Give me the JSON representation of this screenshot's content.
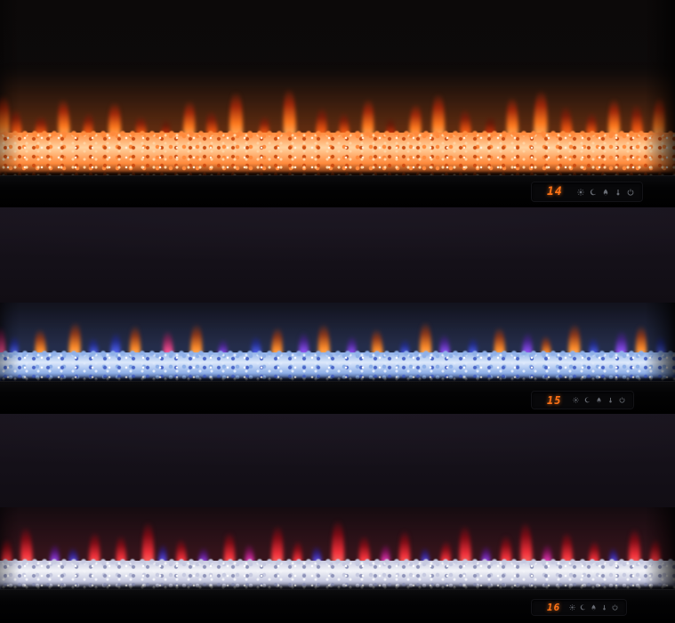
{
  "image": {
    "type": "product-photo",
    "subject": "Three wall-recessed linear electric fireplaces stacked vertically, each showing a different flame and crystal ember color theme",
    "background_color": "#0b0809"
  },
  "colors": {
    "digit_orange": "#ff7316",
    "icon_gray": "#81868f",
    "bezel_black": "#030304",
    "wall_dark": "#171219"
  },
  "panels": [
    {
      "id": "top",
      "flame_theme": "orange flames",
      "crystal_theme": "amber glowing crystals",
      "display": {
        "temperature": "14",
        "icons": [
          {
            "name": "sun-icon",
            "meaning": "flame brightness"
          },
          {
            "name": "moon-icon",
            "meaning": "sleep / night mode"
          },
          {
            "name": "flame-icon",
            "meaning": "flame effect"
          },
          {
            "name": "thermometer-icon",
            "meaning": "heat setting"
          },
          {
            "name": "power-icon",
            "meaning": "power"
          }
        ]
      },
      "bed": {
        "hi": "#ffd2a0",
        "mid": "#ff8a3c",
        "deep": "#cc4d12",
        "shadow": "#521d06",
        "spark": "#fff1dc"
      },
      "glow": "rgba(255,110,30,0.40)",
      "palette": {
        "a": [
          "#ffc97e",
          "#ff7a1e",
          "rgba(186,40,8,0.75)"
        ],
        "b": [
          "#ff9a4a",
          "#e8530f",
          "rgba(140,24,6,0.70)"
        ],
        "c": [
          "#ff6a30",
          "#c03008",
          "rgba(100,16,4,0.65)"
        ]
      },
      "flames": [
        [
          0.5,
          54,
          15,
          "a",
          0
        ],
        [
          2.5,
          38,
          12,
          "b",
          -3
        ],
        [
          6,
          30,
          13,
          "b",
          2
        ],
        [
          9.5,
          50,
          13,
          "a",
          -2
        ],
        [
          13,
          34,
          11,
          "b",
          3
        ],
        [
          17,
          46,
          14,
          "a",
          0
        ],
        [
          21,
          30,
          12,
          "b",
          -2
        ],
        [
          24.5,
          26,
          10,
          "c",
          2
        ],
        [
          28,
          48,
          13,
          "a",
          1
        ],
        [
          31.5,
          36,
          12,
          "b",
          -3
        ],
        [
          35,
          58,
          15,
          "a",
          0
        ],
        [
          39,
          30,
          11,
          "b",
          3
        ],
        [
          43,
          62,
          14,
          "a",
          -1
        ],
        [
          47.5,
          40,
          12,
          "b",
          2
        ],
        [
          51,
          34,
          11,
          "b",
          -2
        ],
        [
          54.5,
          50,
          13,
          "a",
          1
        ],
        [
          58,
          28,
          10,
          "c",
          -3
        ],
        [
          61.5,
          44,
          13,
          "a",
          2
        ],
        [
          65,
          56,
          14,
          "a",
          0
        ],
        [
          69,
          38,
          12,
          "b",
          -2
        ],
        [
          72.5,
          30,
          11,
          "c",
          3
        ],
        [
          76,
          52,
          13,
          "a",
          -1
        ],
        [
          80,
          60,
          15,
          "a",
          1
        ],
        [
          84,
          42,
          12,
          "b",
          -3
        ],
        [
          87.5,
          34,
          11,
          "b",
          2
        ],
        [
          91,
          50,
          13,
          "a",
          0
        ],
        [
          94.5,
          44,
          12,
          "b",
          -2
        ],
        [
          97.5,
          52,
          13,
          "a",
          2
        ]
      ]
    },
    {
      "id": "middle",
      "flame_theme": "mixed blue, purple, pink and orange flames",
      "crystal_theme": "ice-blue crystals",
      "display": {
        "temperature": "15",
        "icons": [
          {
            "name": "sun-icon",
            "meaning": "flame brightness"
          },
          {
            "name": "moon-icon",
            "meaning": "sleep / night mode"
          },
          {
            "name": "flame-icon",
            "meaning": "flame effect"
          },
          {
            "name": "thermometer-icon",
            "meaning": "heat setting"
          },
          {
            "name": "power-icon",
            "meaning": "power"
          }
        ]
      },
      "bed": {
        "hi": "#dce8fb",
        "mid": "#8fb0e8",
        "deep": "#4a66c8",
        "shadow": "#1d2a5e",
        "spark": "#ffffff"
      },
      "glow": "rgba(110,150,255,0.30)",
      "palette": {
        "or": [
          "#ffd9a0",
          "#ff8c28",
          "rgba(180,60,10,0.70)"
        ],
        "bl": [
          "#9fb4ff",
          "#4a5ce8",
          "rgba(30,40,160,0.65)"
        ],
        "pu": [
          "#c9a0ff",
          "#8a4cf0",
          "rgba(80,30,160,0.65)"
        ],
        "pk": [
          "#ffb0d0",
          "#f04a8c",
          "rgba(170,30,90,0.65)"
        ]
      },
      "flames": [
        [
          0,
          40,
          12,
          "pk",
          0
        ],
        [
          2,
          30,
          10,
          "bl",
          3
        ],
        [
          6,
          38,
          12,
          "or",
          -2
        ],
        [
          11,
          46,
          13,
          "or",
          2
        ],
        [
          14,
          28,
          10,
          "bl",
          -3
        ],
        [
          17,
          34,
          11,
          "bl",
          2
        ],
        [
          20,
          42,
          12,
          "or",
          0
        ],
        [
          25,
          36,
          11,
          "pk",
          -2
        ],
        [
          29,
          44,
          13,
          "or",
          1
        ],
        [
          33,
          26,
          10,
          "pu",
          3
        ],
        [
          38,
          30,
          11,
          "bl",
          -2
        ],
        [
          41,
          40,
          12,
          "or",
          2
        ],
        [
          45,
          34,
          11,
          "pu",
          0
        ],
        [
          48,
          44,
          13,
          "or",
          -1
        ],
        [
          52,
          30,
          10,
          "pu",
          2
        ],
        [
          56,
          38,
          12,
          "or",
          -3
        ],
        [
          60,
          26,
          10,
          "bl",
          1
        ],
        [
          63,
          46,
          13,
          "or",
          0
        ],
        [
          66,
          32,
          11,
          "pu",
          -2
        ],
        [
          70,
          28,
          10,
          "bl",
          3
        ],
        [
          74,
          40,
          12,
          "or",
          -1
        ],
        [
          78,
          34,
          11,
          "pu",
          2
        ],
        [
          81,
          30,
          10,
          "or",
          -3
        ],
        [
          85,
          44,
          13,
          "or",
          1
        ],
        [
          88,
          28,
          10,
          "bl",
          -2
        ],
        [
          92,
          36,
          12,
          "pu",
          2
        ],
        [
          95,
          42,
          12,
          "or",
          0
        ],
        [
          98,
          30,
          10,
          "bl",
          -2
        ]
      ]
    },
    {
      "id": "bottom",
      "flame_theme": "red, magenta and violet flames",
      "crystal_theme": "clear white crystals",
      "display": {
        "temperature": "16",
        "icons": [
          {
            "name": "sun-icon",
            "meaning": "flame brightness"
          },
          {
            "name": "moon-icon",
            "meaning": "sleep / night mode"
          },
          {
            "name": "flame-icon",
            "meaning": "flame effect"
          },
          {
            "name": "thermometer-icon",
            "meaning": "heat setting"
          },
          {
            "name": "power-icon",
            "meaning": "power"
          }
        ]
      },
      "bed": {
        "hi": "#f2f3f8",
        "mid": "#c6c9e0",
        "deep": "#8e93b8",
        "shadow": "#3c405e",
        "spark": "#ffffff"
      },
      "glow": "rgba(230,60,80,0.22)",
      "palette": {
        "rd": [
          "#ff8a7a",
          "#f2303a",
          "rgba(150,10,20,0.75)"
        ],
        "mg": [
          "#ff9ad8",
          "#e035b0",
          "rgba(150,15,110,0.65)"
        ],
        "vi": [
          "#d0a0ff",
          "#9440e8",
          "rgba(90,20,150,0.65)"
        ],
        "bv": [
          "#a0a8ff",
          "#5b4ce8",
          "rgba(40,30,160,0.65)"
        ]
      },
      "flames": [
        [
          1,
          36,
          11,
          "rd",
          0
        ],
        [
          4,
          50,
          13,
          "rd",
          -2
        ],
        [
          8,
          30,
          10,
          "vi",
          2
        ],
        [
          11,
          26,
          10,
          "bv",
          -3
        ],
        [
          14,
          44,
          12,
          "rd",
          1
        ],
        [
          18,
          40,
          11,
          "rd",
          -1
        ],
        [
          22,
          56,
          13,
          "rd",
          0
        ],
        [
          24,
          30,
          9,
          "bv",
          2
        ],
        [
          27,
          36,
          11,
          "rd",
          -2
        ],
        [
          30,
          26,
          10,
          "vi",
          3
        ],
        [
          34,
          44,
          12,
          "rd",
          0
        ],
        [
          37,
          30,
          10,
          "mg",
          -2
        ],
        [
          41,
          52,
          13,
          "rd",
          1
        ],
        [
          44,
          34,
          10,
          "rd",
          2
        ],
        [
          47,
          28,
          10,
          "bv",
          -3
        ],
        [
          50,
          58,
          14,
          "rd",
          0
        ],
        [
          54,
          40,
          12,
          "rd",
          -1
        ],
        [
          57,
          30,
          10,
          "mg",
          2
        ],
        [
          60,
          46,
          12,
          "rd",
          0
        ],
        [
          63,
          26,
          9,
          "bv",
          -2
        ],
        [
          66,
          34,
          11,
          "rd",
          3
        ],
        [
          69,
          52,
          13,
          "rd",
          -1
        ],
        [
          72,
          28,
          10,
          "vi",
          2
        ],
        [
          75,
          40,
          12,
          "rd",
          0
        ],
        [
          78,
          56,
          13,
          "rd",
          -2
        ],
        [
          81,
          30,
          10,
          "mg",
          1
        ],
        [
          84,
          44,
          12,
          "rd",
          -1
        ],
        [
          88,
          34,
          11,
          "rd",
          2
        ],
        [
          91,
          26,
          9,
          "bv",
          -3
        ],
        [
          94,
          48,
          13,
          "rd",
          0
        ],
        [
          97,
          36,
          11,
          "rd",
          2
        ]
      ]
    }
  ]
}
